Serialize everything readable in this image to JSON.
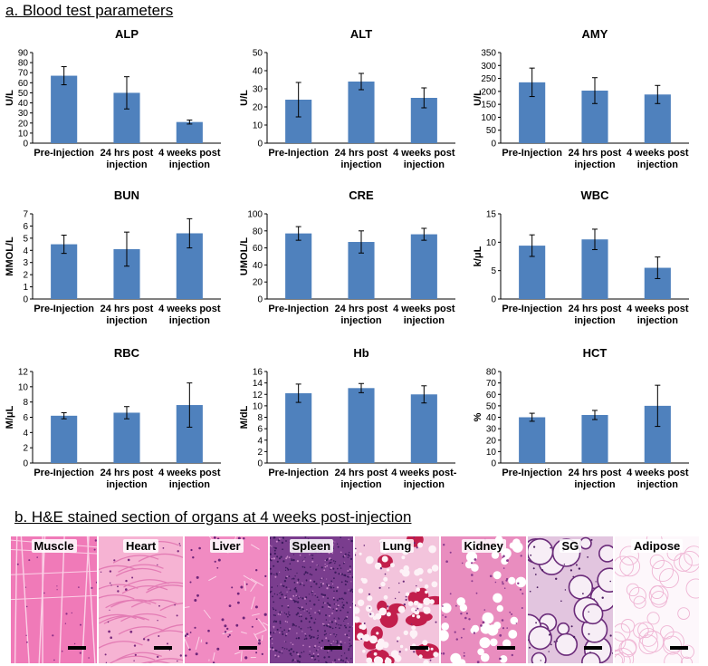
{
  "section_a_title": "a. Blood test parameters",
  "section_b_title": "b. H&E stained section of organs at 4 weeks post-injection",
  "colors": {
    "bar": "#4f81bd",
    "axis": "#000000"
  },
  "chart_data": [
    {
      "type": "bar",
      "title": "ALP",
      "ylabel": "U/L",
      "ylim": [
        0,
        90
      ],
      "yticks": [
        0,
        10,
        20,
        30,
        40,
        50,
        60,
        70,
        80,
        90
      ],
      "categories": [
        [
          "Pre-Injection"
        ],
        [
          "24 hrs post",
          "injection"
        ],
        [
          "4 weeks post",
          "injection"
        ]
      ],
      "values": [
        67,
        50,
        21
      ],
      "errors": [
        9,
        16,
        2
      ]
    },
    {
      "type": "bar",
      "title": "ALT",
      "ylabel": "U/L",
      "ylim": [
        0,
        50
      ],
      "yticks": [
        0,
        10,
        20,
        30,
        40,
        50
      ],
      "categories": [
        [
          "Pre-Injection"
        ],
        [
          "24 hrs post",
          "injection"
        ],
        [
          "4 weeks post",
          "injection"
        ]
      ],
      "values": [
        24,
        34,
        25
      ],
      "errors": [
        9.5,
        4.5,
        5.5
      ]
    },
    {
      "type": "bar",
      "title": "AMY",
      "ylabel": "U/L",
      "ylim": [
        0,
        350
      ],
      "yticks": [
        0,
        50,
        100,
        150,
        200,
        250,
        300,
        350
      ],
      "categories": [
        [
          "Pre-Injection"
        ],
        [
          "24 hrs post",
          "injection"
        ],
        [
          "4 weeks post",
          "injection"
        ]
      ],
      "values": [
        235,
        203,
        188
      ],
      "errors": [
        55,
        50,
        35
      ]
    },
    {
      "type": "bar",
      "title": "BUN",
      "ylabel": "MMOL/L",
      "ylim": [
        0,
        7
      ],
      "yticks": [
        0,
        1,
        2,
        3,
        4,
        5,
        6,
        7
      ],
      "categories": [
        [
          "Pre-Injection"
        ],
        [
          "24 hrs post",
          "injection"
        ],
        [
          "4 weeks post",
          "injection"
        ]
      ],
      "values": [
        4.5,
        4.1,
        5.4
      ],
      "errors": [
        0.75,
        1.4,
        1.2
      ]
    },
    {
      "type": "bar",
      "title": "CRE",
      "ylabel": "UMOL/L",
      "ylim": [
        0,
        100
      ],
      "yticks": [
        0,
        20,
        40,
        60,
        80,
        100
      ],
      "categories": [
        [
          "Pre-Injection"
        ],
        [
          "24 hrs post",
          "injection"
        ],
        [
          "4 weeks post",
          "injection"
        ]
      ],
      "values": [
        77,
        67,
        76
      ],
      "errors": [
        8,
        13,
        7
      ]
    },
    {
      "type": "bar",
      "title": "WBC",
      "ylabel": "k/μL",
      "ylim": [
        0,
        15
      ],
      "yticks": [
        0,
        5,
        10,
        15
      ],
      "categories": [
        [
          "Pre-Injection"
        ],
        [
          "24 hrs post",
          "injection"
        ],
        [
          "4 weeks post",
          "injection"
        ]
      ],
      "values": [
        9.4,
        10.5,
        5.5
      ],
      "errors": [
        1.9,
        1.8,
        1.9
      ]
    },
    {
      "type": "bar",
      "title": "RBC",
      "ylabel": "M/μL",
      "ylim": [
        0,
        12
      ],
      "yticks": [
        0,
        2,
        4,
        6,
        8,
        10,
        12
      ],
      "categories": [
        [
          "Pre-Injection"
        ],
        [
          "24 hrs post",
          "injection"
        ],
        [
          "4 weeks post",
          "injection"
        ]
      ],
      "values": [
        6.2,
        6.6,
        7.6
      ],
      "errors": [
        0.4,
        0.8,
        2.9
      ]
    },
    {
      "type": "bar",
      "title": "Hb",
      "ylabel": "M/dL",
      "ylim": [
        0,
        16
      ],
      "yticks": [
        0,
        2,
        4,
        6,
        8,
        10,
        12,
        14,
        16
      ],
      "categories": [
        [
          "Pre-Injection"
        ],
        [
          "24 hrs post",
          "injection"
        ],
        [
          "4 weeks post-",
          "injection"
        ]
      ],
      "values": [
        12.2,
        13.1,
        12.0
      ],
      "errors": [
        1.6,
        0.8,
        1.5
      ]
    },
    {
      "type": "bar",
      "title": "HCT",
      "ylabel": "%",
      "ylim": [
        0,
        80
      ],
      "yticks": [
        0,
        10,
        20,
        30,
        40,
        50,
        60,
        70,
        80
      ],
      "categories": [
        [
          "Pre-Injection"
        ],
        [
          "24 hrs post",
          "injection"
        ],
        [
          "4 weeks post",
          "injection"
        ]
      ],
      "values": [
        40,
        42,
        50
      ],
      "errors": [
        3.5,
        4,
        18
      ]
    }
  ],
  "histology_panels": [
    {
      "label": "Muscle",
      "tissue": "muscle"
    },
    {
      "label": "Heart",
      "tissue": "heart"
    },
    {
      "label": "Liver",
      "tissue": "liver"
    },
    {
      "label": "Spleen",
      "tissue": "spleen"
    },
    {
      "label": "Lung",
      "tissue": "lung"
    },
    {
      "label": "Kidney",
      "tissue": "kidney"
    },
    {
      "label": "SG",
      "tissue": "sg"
    },
    {
      "label": "Adipose",
      "tissue": "adipose"
    }
  ]
}
